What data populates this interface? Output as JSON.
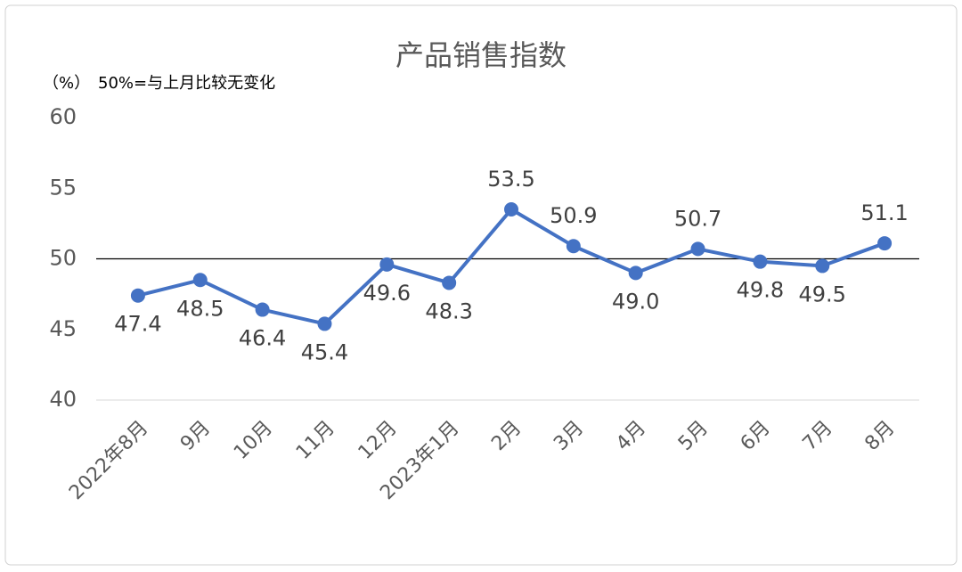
{
  "chart_data": {
    "type": "line",
    "title": "产品销售指数",
    "y_unit": "（%）",
    "annotation": "50%=与上月比较无变化",
    "categories": [
      "2022年8月",
      "9月",
      "10月",
      "11月",
      "12月",
      "2023年1月",
      "2月",
      "3月",
      "4月",
      "5月",
      "6月",
      "7月",
      "8月"
    ],
    "series": [
      {
        "name": "产品销售指数",
        "color": "#4472c4",
        "values": [
          47.4,
          48.5,
          46.4,
          45.4,
          49.6,
          48.3,
          53.5,
          50.9,
          49.0,
          50.7,
          49.8,
          49.5,
          51.1
        ],
        "value_labels": [
          "47.4",
          "48.5",
          "46.4",
          "45.4",
          "49.6",
          "48.3",
          "53.5",
          "50.9",
          "49.0",
          "50.7",
          "49.8",
          "49.5",
          "51.1"
        ]
      }
    ],
    "ylim": [
      40,
      60
    ],
    "yticks": [
      40,
      45,
      50,
      55,
      60
    ],
    "reference_line": 50,
    "grid": false
  }
}
